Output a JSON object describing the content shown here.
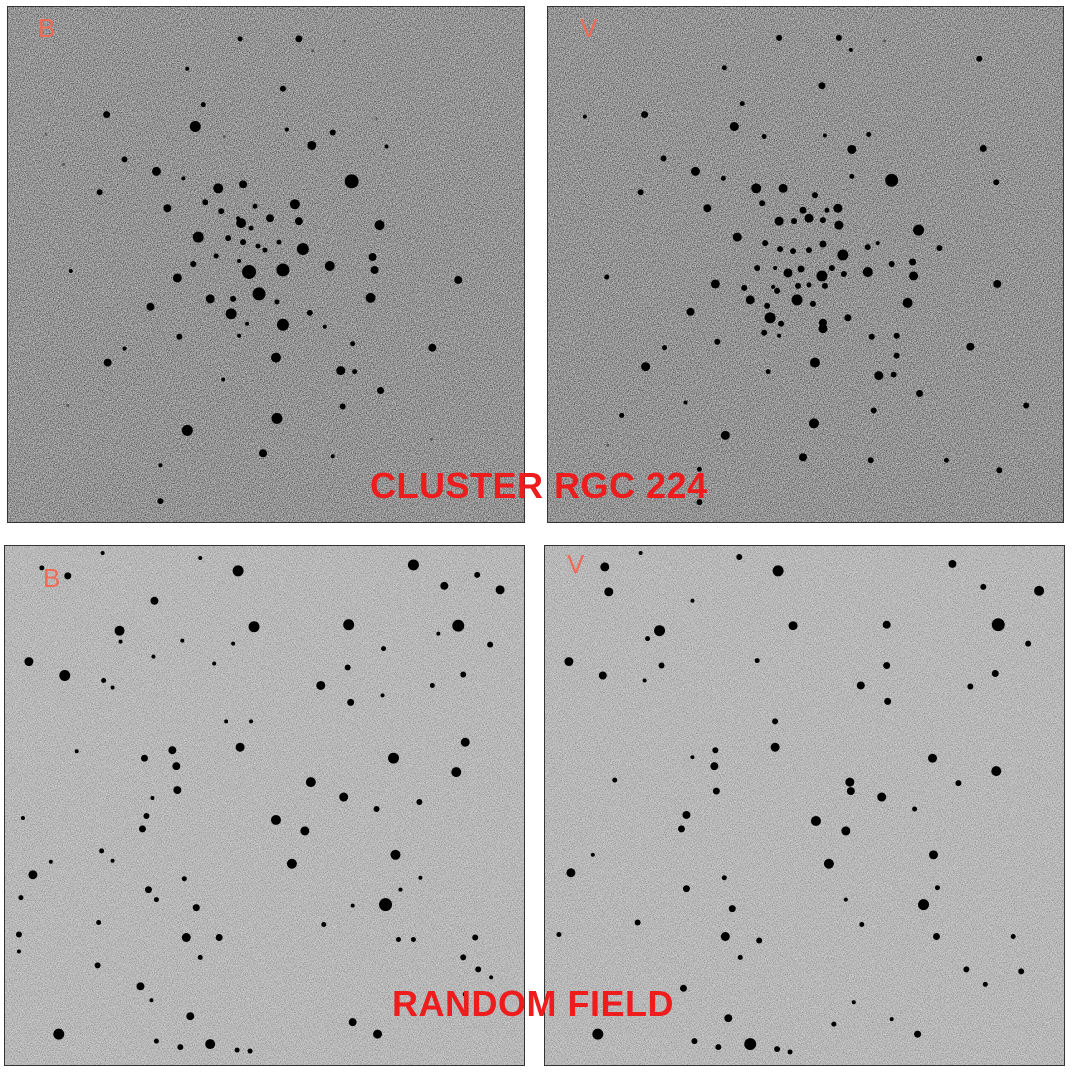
{
  "figure": {
    "cluster_caption": "CLUSTER RGC 224",
    "random_caption": "RANDOM FIELD"
  },
  "panels": {
    "cluster_b": {
      "filter": "B"
    },
    "cluster_v": {
      "filter": "V"
    },
    "random_b": {
      "filter": "B"
    },
    "random_v": {
      "filter": "V"
    }
  },
  "colors": {
    "caption": "#ee1c1c",
    "filter_label": "#f26a55",
    "star": "#000000",
    "sky_cluster": "#c6c6c6",
    "sky_random": "#cfcfcf"
  }
}
